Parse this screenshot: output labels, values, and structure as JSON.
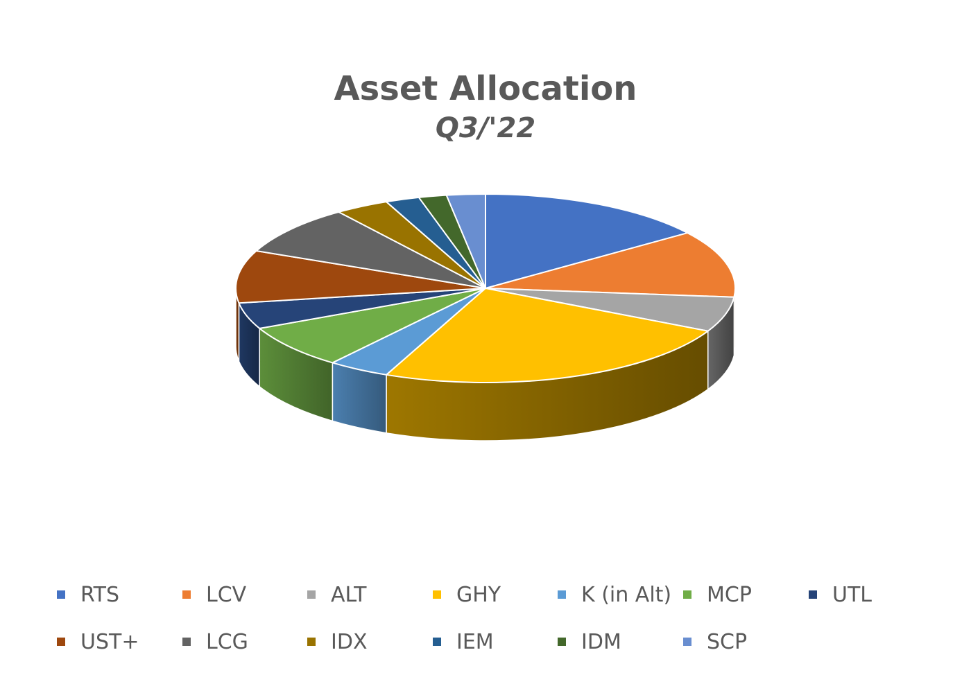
{
  "chart_data": {
    "type": "pie",
    "title": "Asset Allocation",
    "subtitle": "Q3/'22",
    "style": "3d-pie",
    "legend_placement": "bottom",
    "slices": [
      {
        "label": "RTS",
        "value": 15.0,
        "color": "#4472C4"
      },
      {
        "label": "LCV",
        "value": 11.5,
        "color": "#ED7D31"
      },
      {
        "label": "ALT",
        "value": 6.0,
        "color": "#A5A5A5"
      },
      {
        "label": "GHY",
        "value": 24.0,
        "color": "#FFC000"
      },
      {
        "label": "K (in Alt)",
        "value": 4.0,
        "color": "#5B9BD5"
      },
      {
        "label": "MCP",
        "value": 7.5,
        "color": "#70AD47"
      },
      {
        "label": "UTL",
        "value": 4.5,
        "color": "#264478"
      },
      {
        "label": "UST+",
        "value": 9.0,
        "color": "#9E480E"
      },
      {
        "label": "LCG",
        "value": 8.5,
        "color": "#636363"
      },
      {
        "label": "IDX",
        "value": 3.5,
        "color": "#997300"
      },
      {
        "label": "IEM",
        "value": 2.2,
        "color": "#255E91"
      },
      {
        "label": "IDM",
        "value": 1.8,
        "color": "#43682B"
      },
      {
        "label": "SCP",
        "value": 2.5,
        "color": "#698ED0"
      }
    ]
  }
}
